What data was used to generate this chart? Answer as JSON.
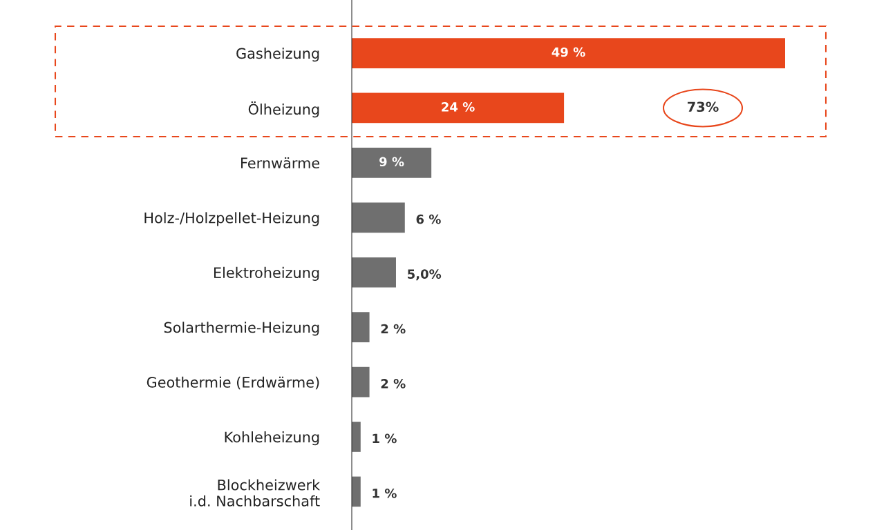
{
  "chart_data": {
    "type": "bar",
    "orientation": "horizontal",
    "categories": [
      "Gasheizung",
      "Ölheizung",
      "Fernwärme",
      "Holz-/Holzpellet-Heizung",
      "Elektroheizung",
      "Solarthermie-Heizung",
      "Geothermie (Erdwärme)",
      "Kohleheizung",
      "Blockheizwerk\ni.d. Nachbarschaft"
    ],
    "values": [
      49,
      24,
      9,
      6,
      5.0,
      2,
      2,
      1,
      1
    ],
    "value_labels": [
      "49 %",
      "24 %",
      "9 %",
      "6 %",
      "5,0%",
      "2 %",
      "2 %",
      "1 %",
      "1 %"
    ],
    "colors": [
      "#e8471c",
      "#e8471c",
      "#6f6f6f",
      "#6f6f6f",
      "#6f6f6f",
      "#6f6f6f",
      "#6f6f6f",
      "#6f6f6f",
      "#6f6f6f"
    ],
    "annotations": [
      "73%"
    ],
    "grid": false,
    "legend": false
  }
}
